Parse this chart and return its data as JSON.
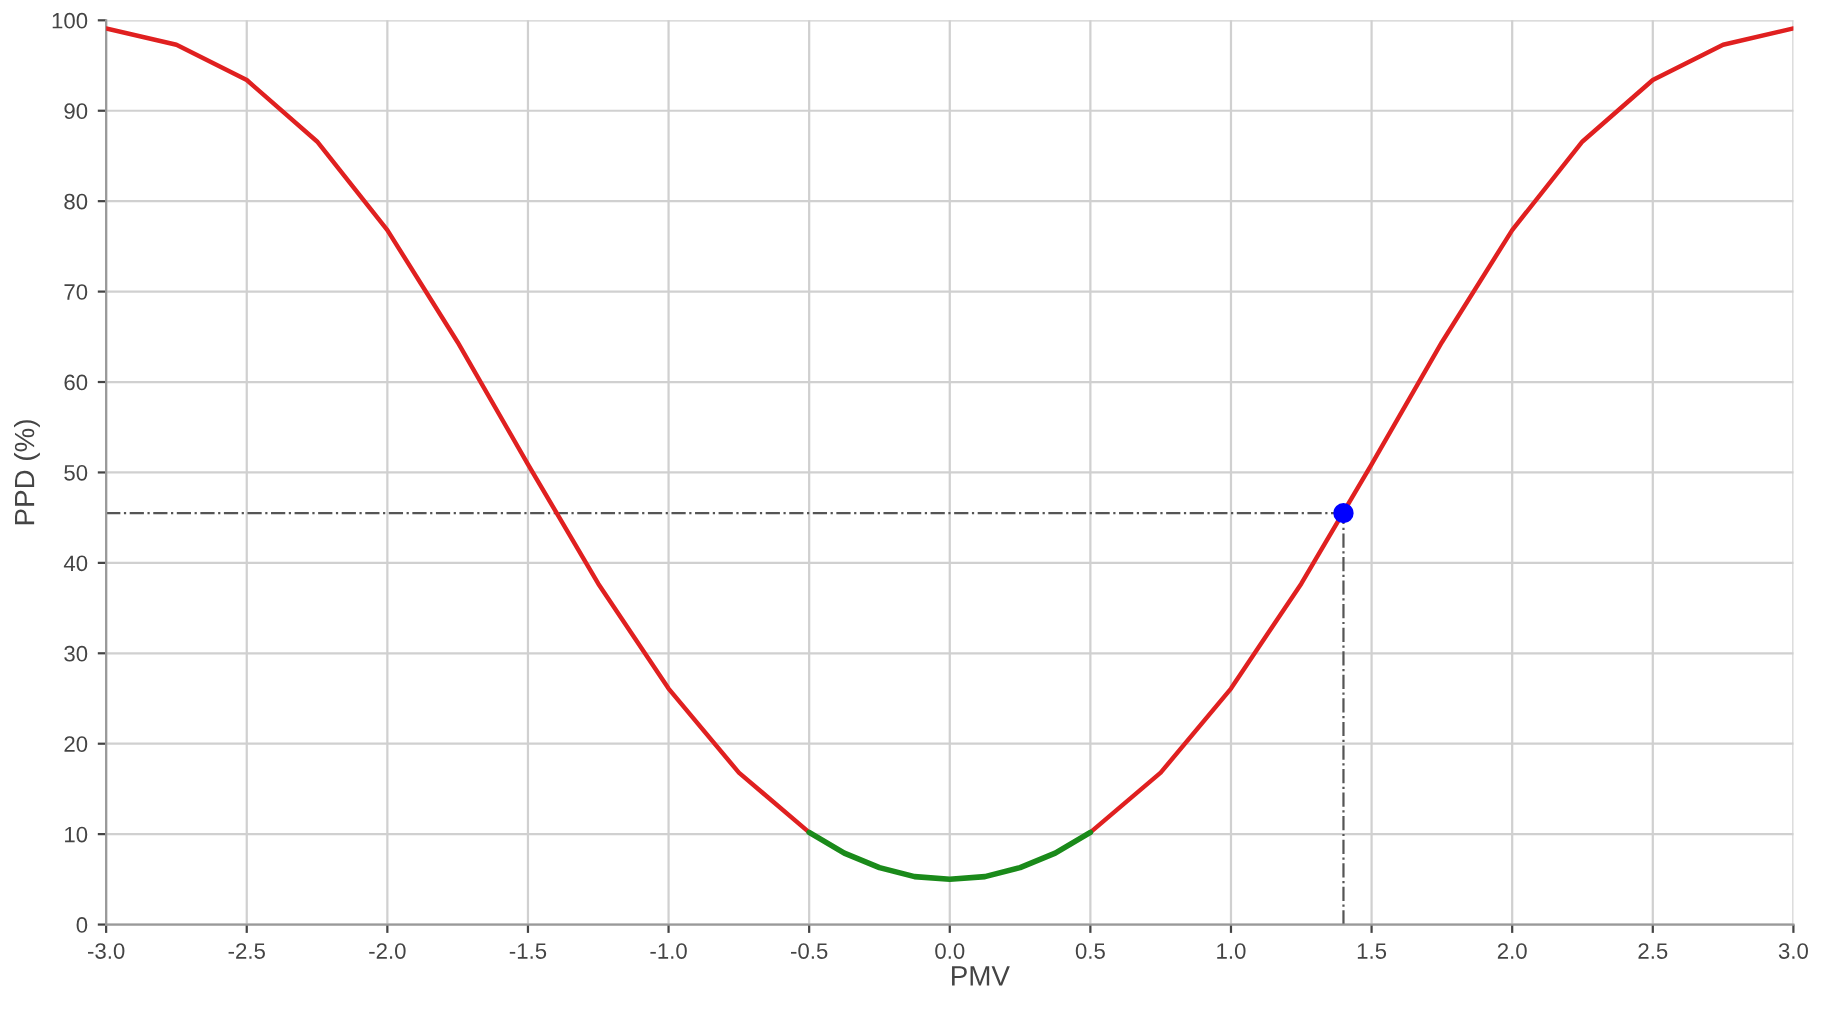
{
  "chart_data": {
    "type": "line",
    "xlabel": "PMV",
    "ylabel": "PPD (%)",
    "series": [
      {
        "color": "#e02020",
        "x": [
          -3.0,
          -2.75,
          -2.5,
          -2.25,
          -2.0,
          -1.75,
          -1.5,
          -1.25,
          -1.0,
          -0.75,
          -0.5,
          -0.25,
          0.0,
          0.25,
          0.5,
          0.75,
          1.0,
          1.25,
          1.5,
          1.75,
          2.0,
          2.25,
          2.5,
          2.75,
          3.0
        ],
        "values": [
          99.1,
          97.3,
          93.4,
          86.6,
          76.8,
          64.4,
          50.9,
          37.7,
          26.1,
          16.8,
          10.2,
          null,
          null,
          null,
          10.2,
          16.8,
          26.1,
          37.7,
          50.9,
          64.4,
          76.8,
          86.6,
          93.4,
          97.3,
          99.1
        ]
      },
      {
        "color": "#1a8a1a",
        "x": [
          -0.5,
          -0.375,
          -0.25,
          -0.125,
          0.0,
          0.125,
          0.25,
          0.375,
          0.5
        ],
        "values": [
          10.2,
          7.9,
          6.3,
          5.3,
          5.0,
          5.3,
          6.3,
          7.9,
          10.2
        ]
      },
      {
        "type": "scatter",
        "marker": "circle",
        "color": "#0000ff",
        "x": [
          1.4
        ],
        "values": [
          45.5
        ]
      }
    ],
    "ref_lines": [
      {
        "axis": "y",
        "value": 45.5,
        "color": "#555555",
        "line_style": "dashdot"
      },
      {
        "axis": "x",
        "value": 1.4,
        "color": "#555555",
        "line_style": "dashdot"
      }
    ],
    "xlim": [
      -3.0,
      3.0
    ],
    "xticks": [
      {
        "value": -3.0,
        "label": "-3.0"
      },
      {
        "value": -2.5,
        "label": "-2.5"
      },
      {
        "value": -2.0,
        "label": "-2.0"
      },
      {
        "value": -1.5,
        "label": "-1.5"
      },
      {
        "value": -1.0,
        "label": "-1.0"
      },
      {
        "value": -0.5,
        "label": "-0.5"
      },
      {
        "value": 0.0,
        "label": "0.0"
      },
      {
        "value": 0.5,
        "label": "0.5"
      },
      {
        "value": 1.0,
        "label": "1.0"
      },
      {
        "value": 1.5,
        "label": "1.5"
      },
      {
        "value": 2.0,
        "label": "2.0"
      },
      {
        "value": 2.5,
        "label": "2.5"
      },
      {
        "value": 3.0,
        "label": "3.0"
      }
    ],
    "ylim": [
      0,
      100
    ],
    "yticks": [
      0,
      10,
      20,
      30,
      40,
      50,
      60,
      70,
      80,
      90,
      100
    ],
    "grid": true,
    "line_style": "solid"
  }
}
